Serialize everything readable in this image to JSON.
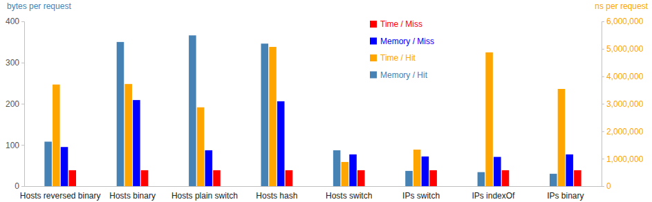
{
  "chart_data": {
    "type": "bar",
    "ylabel": "bytes per request",
    "y2label": "ns per request",
    "categories": [
      "Hosts reversed binary",
      "Hosts binary",
      "Hosts plain switch",
      "Hosts hash",
      "Hosts switch",
      "IPs switch",
      "IPs indexOf",
      "IPs binary"
    ],
    "series": [
      {
        "name": "Memory / Hit",
        "color": "#4682b4",
        "values": [
          108,
          350,
          366,
          346,
          87,
          37,
          34,
          30
        ]
      },
      {
        "name": "Time / Hit",
        "color": "#ffa500",
        "axis": "y2",
        "values": [
          3700000,
          3720000,
          2870000,
          5070000,
          880000,
          1330000,
          4870000,
          3540000
        ]
      },
      {
        "name": "Memory / Miss",
        "color": "#0000ff",
        "values": [
          95,
          209,
          87,
          206,
          77,
          72,
          71,
          77
        ]
      },
      {
        "name": "Time / Miss",
        "color": "#ff0000",
        "axis": "y2",
        "values": [
          580000,
          580000,
          580000,
          580000,
          580000,
          580000,
          580000,
          580000
        ]
      }
    ],
    "ylim": [
      0,
      400
    ],
    "yticks": [
      0,
      100,
      200,
      300,
      400
    ],
    "y2lim": [
      0,
      6000000
    ],
    "y2ticks": [
      0,
      {
        "value": 1000000,
        "label": "1,000,000"
      },
      {
        "value": 2000000,
        "label": "2,000,000"
      },
      {
        "value": 3000000,
        "label": "3,000,000"
      },
      {
        "value": 4000000,
        "label": "4,000,000"
      },
      {
        "value": 5000000,
        "label": "5,000,000"
      },
      {
        "value": 6000000,
        "label": "6,000,000"
      }
    ],
    "legend": "top",
    "grid": false
  }
}
